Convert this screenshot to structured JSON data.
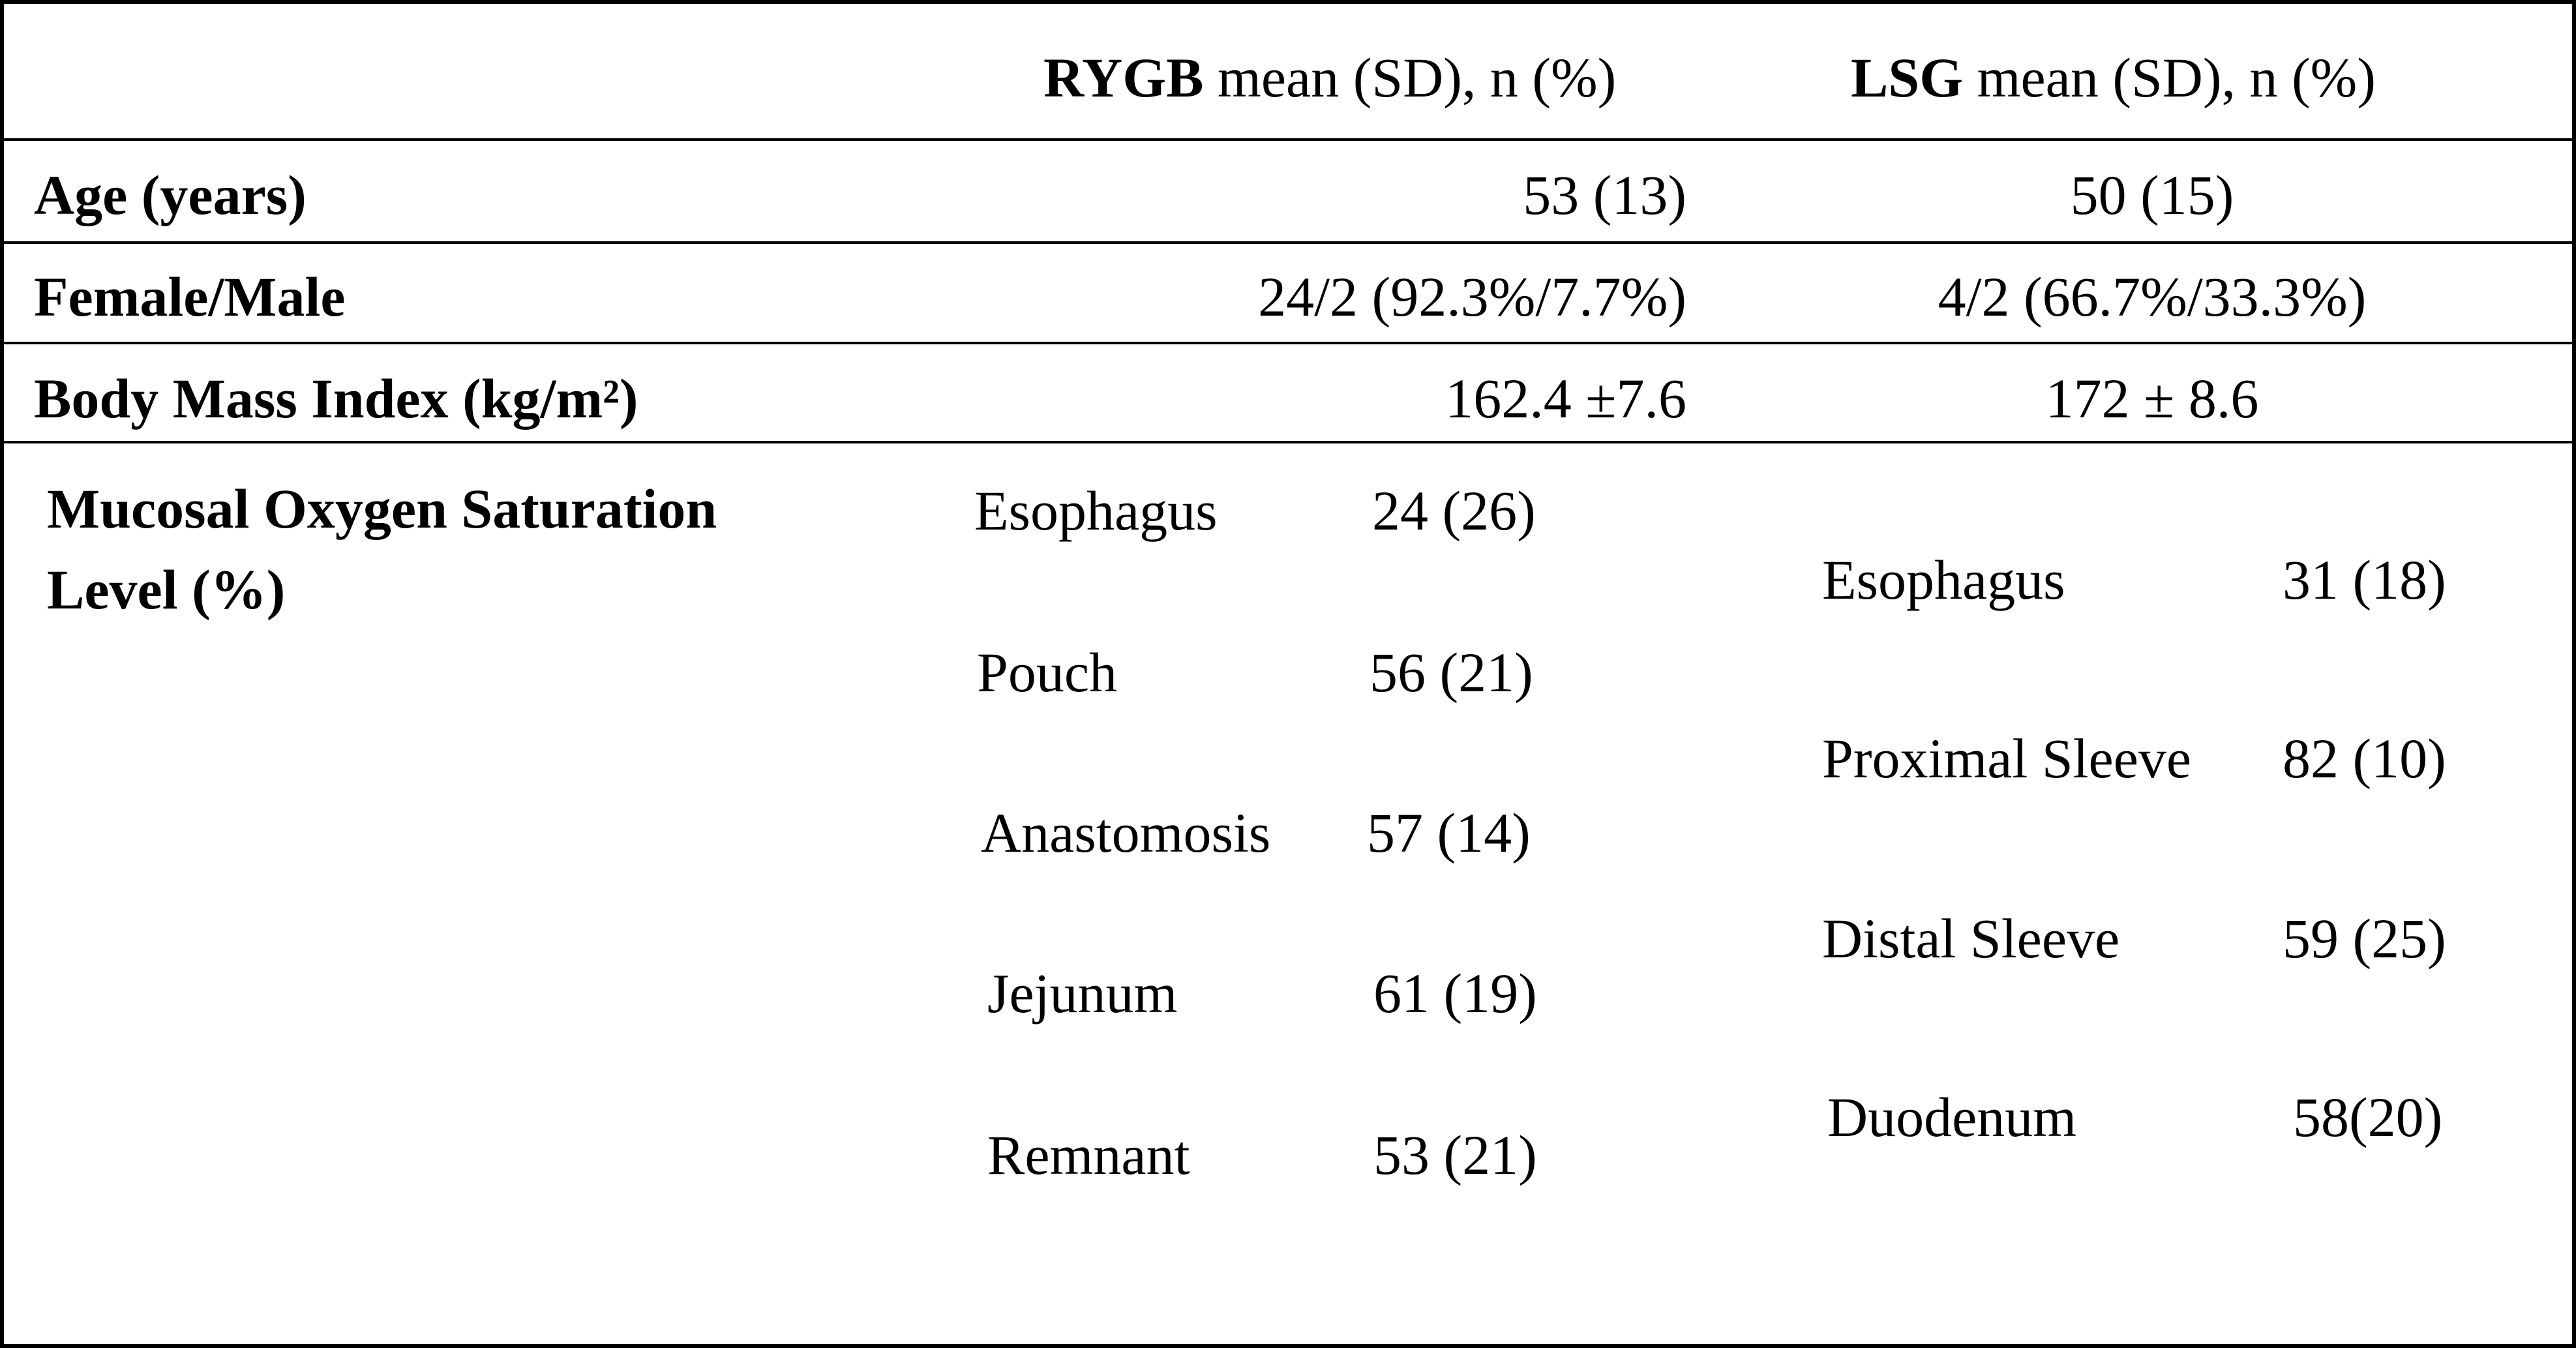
{
  "table": {
    "header": {
      "rygb": {
        "bold": "RYGB",
        "rest": " mean (SD), n (%)"
      },
      "lsg": {
        "bold": "LSG",
        "rest": " mean (SD), n (%)"
      }
    },
    "rows": [
      {
        "label": "Age (years)",
        "rygb": "53 (13)",
        "lsg": "50 (15)"
      },
      {
        "label": "Female/Male",
        "rygb": "24/2 (92.3%/7.7%)",
        "lsg": "4/2 (66.7%/33.3%)"
      },
      {
        "label": "Body Mass Index (kg/m²)",
        "rygb": "162.4 ±7.6",
        "lsg": "172 ± 8.6"
      }
    ],
    "mucosal": {
      "label_line1": "Mucosal Oxygen Saturation",
      "label_line2": "Level (%)",
      "rygb": [
        {
          "site": "Esophagus",
          "value": "24 (26)"
        },
        {
          "site": "Pouch",
          "value": "56 (21)"
        },
        {
          "site": "Anastomosis",
          "value": "57 (14)"
        },
        {
          "site": "Jejunum",
          "value": "61 (19)"
        },
        {
          "site": "Remnant",
          "value": "53 (21)"
        }
      ],
      "lsg": [
        {
          "site": "Esophagus",
          "value": "31 (18)"
        },
        {
          "site": "Proximal Sleeve",
          "value": "82 (10)"
        },
        {
          "site": "Distal Sleeve",
          "value": "59 (25)"
        },
        {
          "site": "Duodenum",
          "value": "58(20)"
        }
      ]
    }
  }
}
